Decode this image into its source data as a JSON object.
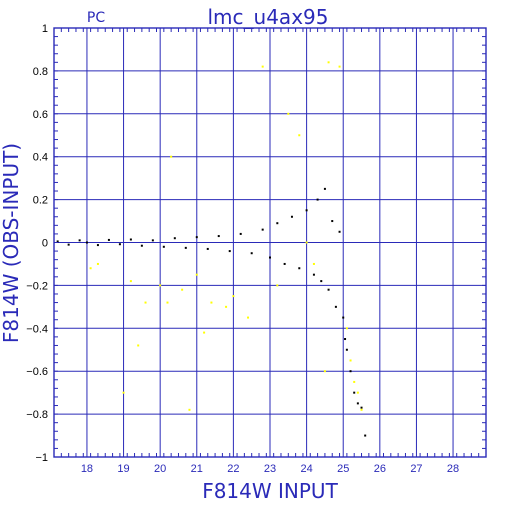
{
  "chart_data": {
    "type": "scatter",
    "title": "lmc_u4ax95",
    "corner_label": "PC",
    "xlabel": "F814W  INPUT",
    "ylabel": "F814W (OBS-INPUT)",
    "xlim": [
      17.1,
      28.9
    ],
    "ylim": [
      -1,
      1
    ],
    "x_ticks": [
      18,
      19,
      20,
      21,
      22,
      23,
      24,
      25,
      26,
      27,
      28
    ],
    "y_ticks": [
      -1,
      -0.8,
      -0.6,
      -0.4,
      -0.2,
      0,
      0.2,
      0.4,
      0.6,
      0.8,
      1
    ],
    "y_tick_labels": [
      "−1",
      "−0.8",
      "−0.6",
      "−0.4",
      "−0.2",
      "0",
      "0.2",
      "0.4",
      "0.6",
      "0.8",
      "1"
    ],
    "grid": true,
    "colors": {
      "axis": "#2a2ab8",
      "grid": "#2a2ab8",
      "points_main": "#000000",
      "points_flagged": "#ffff00"
    },
    "series": [
      {
        "color": "#000000",
        "points": [
          [
            17.2,
            0.005
          ],
          [
            17.5,
            -0.01
          ],
          [
            17.8,
            0.01
          ],
          [
            18.0,
            0.0
          ],
          [
            18.3,
            -0.012
          ],
          [
            18.6,
            0.012
          ],
          [
            18.9,
            -0.008
          ],
          [
            19.2,
            0.014
          ],
          [
            19.5,
            -0.015
          ],
          [
            19.8,
            0.01
          ],
          [
            20.1,
            -0.02
          ],
          [
            20.4,
            0.02
          ],
          [
            20.7,
            -0.025
          ],
          [
            21.0,
            0.025
          ],
          [
            21.3,
            -0.03
          ],
          [
            21.6,
            0.03
          ],
          [
            21.9,
            -0.04
          ],
          [
            22.2,
            0.04
          ],
          [
            22.5,
            -0.05
          ],
          [
            22.8,
            0.06
          ],
          [
            23.0,
            -0.07
          ],
          [
            23.2,
            0.09
          ],
          [
            23.4,
            -0.1
          ],
          [
            23.6,
            0.12
          ],
          [
            23.8,
            -0.12
          ],
          [
            24.0,
            0.15
          ],
          [
            24.2,
            -0.15
          ],
          [
            24.3,
            0.2
          ],
          [
            24.4,
            -0.18
          ],
          [
            24.5,
            0.25
          ],
          [
            24.6,
            -0.22
          ],
          [
            24.7,
            0.1
          ],
          [
            24.8,
            -0.3
          ],
          [
            24.9,
            0.05
          ],
          [
            25.0,
            -0.35
          ],
          [
            25.05,
            -0.45
          ],
          [
            25.1,
            -0.5
          ],
          [
            25.2,
            -0.6
          ],
          [
            25.3,
            -0.7
          ],
          [
            25.4,
            -0.75
          ],
          [
            25.5,
            -0.77
          ],
          [
            25.6,
            -0.9
          ]
        ]
      },
      {
        "color": "#ffff00",
        "points": [
          [
            18.1,
            -0.12
          ],
          [
            18.3,
            -0.1
          ],
          [
            19.0,
            -0.7
          ],
          [
            19.2,
            -0.18
          ],
          [
            19.4,
            -0.48
          ],
          [
            19.6,
            -0.28
          ],
          [
            20.0,
            -0.2
          ],
          [
            20.2,
            -0.28
          ],
          [
            20.3,
            0.4
          ],
          [
            20.6,
            -0.22
          ],
          [
            20.8,
            -0.78
          ],
          [
            21.0,
            -0.15
          ],
          [
            21.2,
            -0.42
          ],
          [
            21.4,
            -0.28
          ],
          [
            21.8,
            -0.3
          ],
          [
            22.0,
            -0.25
          ],
          [
            22.4,
            -0.35
          ],
          [
            22.8,
            0.82
          ],
          [
            23.2,
            -0.2
          ],
          [
            23.5,
            0.6
          ],
          [
            23.8,
            0.5
          ],
          [
            24.0,
            0.0
          ],
          [
            24.2,
            -0.1
          ],
          [
            24.5,
            -0.6
          ],
          [
            24.6,
            0.84
          ],
          [
            24.9,
            0.82
          ],
          [
            25.1,
            -0.4
          ],
          [
            25.2,
            -0.55
          ],
          [
            25.3,
            -0.65
          ],
          [
            25.4,
            -0.7
          ],
          [
            25.5,
            -0.78
          ]
        ]
      }
    ]
  }
}
